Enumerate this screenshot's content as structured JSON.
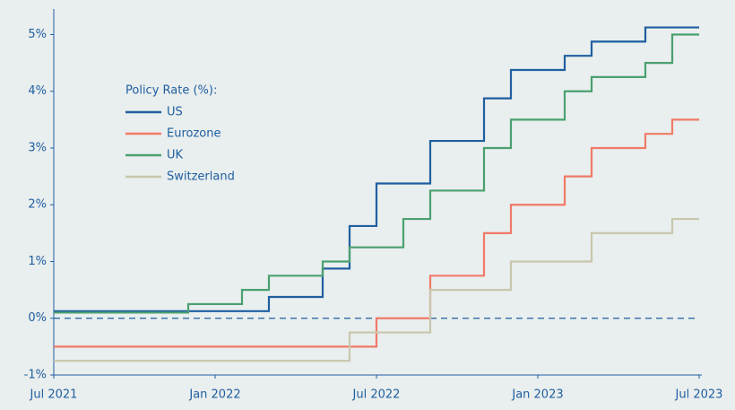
{
  "chart_data": {
    "type": "step-line",
    "legend_title": "Policy Rate (%):",
    "legend": "upper left",
    "xlim": [
      "2021-07",
      "2023-07"
    ],
    "xticks": [
      {
        "value": "2021-07",
        "label": "Jul 2021"
      },
      {
        "value": "2022-01",
        "label": "Jan 2022"
      },
      {
        "value": "2022-07",
        "label": "Jul 2022"
      },
      {
        "value": "2023-01",
        "label": "Jan 2023"
      },
      {
        "value": "2023-07",
        "label": "Jul 2023"
      }
    ],
    "ylim": [
      -1,
      5.45
    ],
    "yticks": [
      {
        "value": 5,
        "label": "5%"
      },
      {
        "value": 4,
        "label": "4%"
      },
      {
        "value": 3,
        "label": "3%"
      },
      {
        "value": 2,
        "label": "2%"
      },
      {
        "value": 1,
        "label": "1%"
      },
      {
        "value": 0,
        "label": "0%"
      },
      {
        "value": -1,
        "label": "-1%"
      }
    ],
    "series": [
      {
        "name": "US",
        "color": "#1f5fa0",
        "x": [
          "2021-07",
          "2022-03",
          "2022-05",
          "2022-06",
          "2022-07",
          "2022-09",
          "2022-11",
          "2022-12",
          "2023-02",
          "2023-03",
          "2023-05",
          "2023-07"
        ],
        "values": [
          0.125,
          0.375,
          0.875,
          1.625,
          2.375,
          3.125,
          3.875,
          4.375,
          4.625,
          4.875,
          5.125,
          5.125
        ]
      },
      {
        "name": "Eurozone",
        "color": "#f07a68",
        "x": [
          "2021-07",
          "2022-07",
          "2022-09",
          "2022-11",
          "2022-12",
          "2023-02",
          "2023-03",
          "2023-05",
          "2023-06",
          "2023-07"
        ],
        "values": [
          -0.5,
          0,
          0.75,
          1.5,
          2.0,
          2.5,
          3.0,
          3.25,
          3.5,
          3.5
        ]
      },
      {
        "name": "UK",
        "color": "#4aa070",
        "x": [
          "2021-07",
          "2021-12",
          "2022-02",
          "2022-03",
          "2022-05",
          "2022-06",
          "2022-08",
          "2022-09",
          "2022-11",
          "2022-12",
          "2023-02",
          "2023-03",
          "2023-05",
          "2023-06",
          "2023-07"
        ],
        "values": [
          0.1,
          0.25,
          0.5,
          0.75,
          1.0,
          1.25,
          1.75,
          2.25,
          3.0,
          3.5,
          4.0,
          4.25,
          4.5,
          5.0,
          5.0
        ]
      },
      {
        "name": "Switzerland",
        "color": "#c9c6ad",
        "x": [
          "2021-07",
          "2022-06",
          "2022-09",
          "2022-12",
          "2023-03",
          "2023-06",
          "2023-07"
        ],
        "values": [
          -0.75,
          -0.25,
          0.5,
          1.0,
          1.5,
          1.75,
          1.75
        ]
      }
    ]
  }
}
